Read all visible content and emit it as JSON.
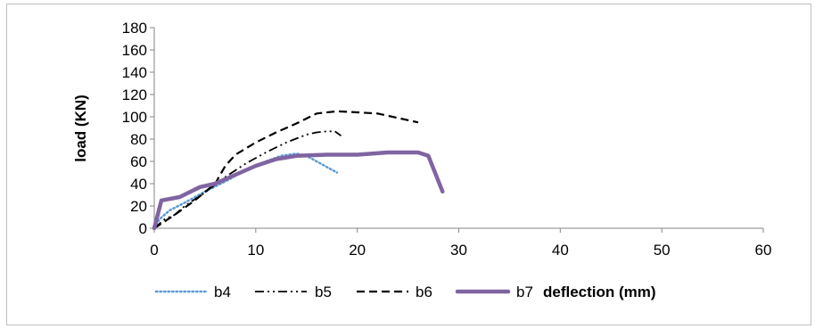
{
  "chart_data": {
    "type": "line",
    "title": "",
    "xlabel": "deflection (mm)",
    "ylabel": "load (KN)",
    "xlim": [
      0,
      60
    ],
    "ylim": [
      0,
      180
    ],
    "xticks": [
      0,
      10,
      20,
      30,
      40,
      50,
      60
    ],
    "yticks": [
      0,
      20,
      40,
      60,
      80,
      100,
      120,
      140,
      160,
      180
    ],
    "grid": false,
    "legend_position": "bottom",
    "series": [
      {
        "name": "b4",
        "color": "#5b9bd5",
        "style": "dotted",
        "x": [
          0,
          0.5,
          1.5,
          3,
          5,
          7,
          9,
          11,
          12.5,
          14,
          15,
          16,
          17,
          18
        ],
        "y": [
          0,
          8,
          16,
          23,
          33,
          42,
          52,
          60,
          65,
          67,
          65,
          60,
          55,
          50
        ]
      },
      {
        "name": "b5",
        "color": "#000000",
        "style": "dash-dot-dot",
        "x": [
          0,
          1,
          2,
          3,
          5,
          7,
          9,
          11,
          13,
          15,
          16,
          17,
          17.8,
          18.4
        ],
        "y": [
          0,
          8,
          12,
          20,
          32,
          46,
          58,
          68,
          77,
          84,
          86,
          87,
          87,
          83
        ]
      },
      {
        "name": "b6",
        "color": "#000000",
        "style": "dashed",
        "x": [
          0,
          1,
          2,
          4,
          6,
          7,
          8,
          10,
          12,
          14,
          16,
          18,
          20,
          22,
          24,
          26
        ],
        "y": [
          0,
          6,
          12,
          25,
          40,
          56,
          66,
          77,
          86,
          94,
          103,
          105,
          104,
          103,
          99,
          95
        ]
      },
      {
        "name": "b7",
        "color": "#8064a2",
        "style": "solid",
        "x": [
          0,
          0.7,
          2.5,
          4.5,
          6,
          8,
          10,
          12,
          14,
          17,
          20,
          23,
          26,
          27,
          28.4
        ],
        "y": [
          0,
          25,
          28,
          37,
          40,
          48,
          56,
          62,
          65,
          66,
          66,
          68,
          68,
          65,
          33
        ]
      }
    ]
  }
}
